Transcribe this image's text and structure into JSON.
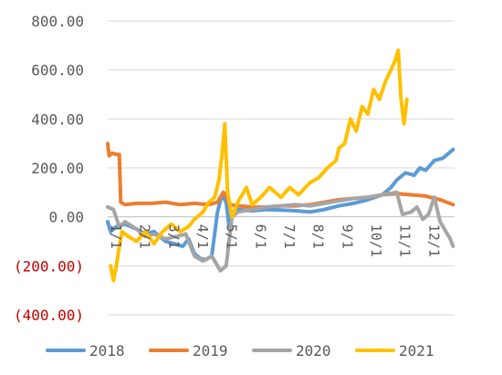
{
  "chart_data": {
    "type": "line",
    "title": "",
    "xlabel": "",
    "ylabel": "",
    "ylim": [
      -400,
      800
    ],
    "y_ticks": [
      "800.00",
      "600.00",
      "400.00",
      "200.00",
      "0.00",
      "(200.00)",
      "(400.00)"
    ],
    "y_tick_values": [
      800,
      600,
      400,
      200,
      0,
      -200,
      -400
    ],
    "negative_tick_color": "#c00000",
    "x_ticks": [
      "1/1",
      "2/1",
      "3/1",
      "4/1",
      "5/1",
      "6/1",
      "7/1",
      "8/1",
      "9/1",
      "10/1",
      "11/1",
      "12/1"
    ],
    "x_tick_months": [
      1,
      2,
      3,
      4,
      5,
      6,
      7,
      8,
      9,
      10,
      11,
      12
    ],
    "xlim": [
      1,
      13
    ],
    "grid": true,
    "legend_position": "bottom",
    "series": [
      {
        "name": "2018",
        "color": "#5b9bd5",
        "points": [
          [
            1,
            -20
          ],
          [
            1.1,
            -60
          ],
          [
            1.3,
            -40
          ],
          [
            1.6,
            -30
          ],
          [
            2,
            -50
          ],
          [
            2.3,
            -70
          ],
          [
            2.6,
            -60
          ],
          [
            3,
            -100
          ],
          [
            3.3,
            -110
          ],
          [
            3.6,
            -120
          ],
          [
            3.8,
            -90
          ],
          [
            4,
            -150
          ],
          [
            4.2,
            -170
          ],
          [
            4.4,
            -175
          ],
          [
            4.6,
            -160
          ],
          [
            4.8,
            20
          ],
          [
            4.95,
            90
          ],
          [
            5.1,
            60
          ],
          [
            5.2,
            -40
          ],
          [
            5.3,
            20
          ],
          [
            5.5,
            30
          ],
          [
            6,
            25
          ],
          [
            6.5,
            30
          ],
          [
            7,
            28
          ],
          [
            7.5,
            25
          ],
          [
            8,
            20
          ],
          [
            8.5,
            30
          ],
          [
            9,
            45
          ],
          [
            9.5,
            55
          ],
          [
            10,
            70
          ],
          [
            10.5,
            90
          ],
          [
            10.8,
            120
          ],
          [
            11,
            150
          ],
          [
            11.3,
            180
          ],
          [
            11.6,
            170
          ],
          [
            11.8,
            200
          ],
          [
            12,
            190
          ],
          [
            12.3,
            230
          ],
          [
            12.6,
            240
          ],
          [
            12.8,
            260
          ],
          [
            12.95,
            275
          ]
        ]
      },
      {
        "name": "2019",
        "color": "#ed7d31",
        "points": [
          [
            1,
            300
          ],
          [
            1.05,
            250
          ],
          [
            1.15,
            260
          ],
          [
            1.3,
            255
          ],
          [
            1.4,
            255
          ],
          [
            1.45,
            60
          ],
          [
            1.6,
            50
          ],
          [
            2,
            55
          ],
          [
            2.5,
            55
          ],
          [
            3,
            60
          ],
          [
            3.5,
            50
          ],
          [
            4,
            55
          ],
          [
            4.5,
            50
          ],
          [
            4.8,
            60
          ],
          [
            5,
            100
          ],
          [
            5.1,
            90
          ],
          [
            5.2,
            50
          ],
          [
            5.5,
            45
          ],
          [
            6,
            40
          ],
          [
            6.5,
            40
          ],
          [
            7,
            45
          ],
          [
            7.5,
            45
          ],
          [
            8,
            50
          ],
          [
            8.5,
            60
          ],
          [
            9,
            70
          ],
          [
            9.5,
            75
          ],
          [
            10,
            80
          ],
          [
            10.5,
            90
          ],
          [
            11,
            95
          ],
          [
            11.5,
            90
          ],
          [
            12,
            85
          ],
          [
            12.5,
            70
          ],
          [
            12.95,
            50
          ]
        ]
      },
      {
        "name": "2020",
        "color": "#a5a5a5",
        "points": [
          [
            1,
            40
          ],
          [
            1.2,
            30
          ],
          [
            1.4,
            -40
          ],
          [
            1.6,
            -20
          ],
          [
            2,
            -50
          ],
          [
            2.3,
            -80
          ],
          [
            2.6,
            -70
          ],
          [
            3,
            -90
          ],
          [
            3.4,
            -80
          ],
          [
            3.7,
            -70
          ],
          [
            4,
            -160
          ],
          [
            4.3,
            -180
          ],
          [
            4.6,
            -160
          ],
          [
            4.9,
            -220
          ],
          [
            5.1,
            -200
          ],
          [
            5.3,
            0
          ],
          [
            5.5,
            20
          ],
          [
            6,
            30
          ],
          [
            6.5,
            40
          ],
          [
            7,
            45
          ],
          [
            7.5,
            50
          ],
          [
            8,
            45
          ],
          [
            8.5,
            55
          ],
          [
            9,
            65
          ],
          [
            9.5,
            75
          ],
          [
            10,
            80
          ],
          [
            10.5,
            90
          ],
          [
            11,
            100
          ],
          [
            11.2,
            10
          ],
          [
            11.5,
            20
          ],
          [
            11.7,
            40
          ],
          [
            11.9,
            -10
          ],
          [
            12.1,
            10
          ],
          [
            12.3,
            80
          ],
          [
            12.5,
            -20
          ],
          [
            12.7,
            -60
          ],
          [
            12.85,
            -90
          ],
          [
            12.95,
            -120
          ]
        ]
      },
      {
        "name": "2021",
        "color": "#ffc000",
        "points": [
          [
            1.1,
            -200
          ],
          [
            1.2,
            -260
          ],
          [
            1.3,
            -200
          ],
          [
            1.4,
            -120
          ],
          [
            1.5,
            -60
          ],
          [
            1.7,
            -80
          ],
          [
            2,
            -100
          ],
          [
            2.3,
            -60
          ],
          [
            2.6,
            -110
          ],
          [
            2.9,
            -60
          ],
          [
            3.2,
            -30
          ],
          [
            3.5,
            -60
          ],
          [
            3.8,
            -40
          ],
          [
            4,
            -10
          ],
          [
            4.3,
            20
          ],
          [
            4.5,
            60
          ],
          [
            4.7,
            80
          ],
          [
            4.85,
            150
          ],
          [
            4.95,
            250
          ],
          [
            5.05,
            380
          ],
          [
            5.15,
            100
          ],
          [
            5.3,
            0
          ],
          [
            5.5,
            60
          ],
          [
            5.8,
            120
          ],
          [
            6,
            50
          ],
          [
            6.3,
            80
          ],
          [
            6.6,
            120
          ],
          [
            7,
            80
          ],
          [
            7.3,
            120
          ],
          [
            7.6,
            90
          ],
          [
            8,
            140
          ],
          [
            8.3,
            160
          ],
          [
            8.6,
            200
          ],
          [
            8.9,
            230
          ],
          [
            9,
            280
          ],
          [
            9.2,
            300
          ],
          [
            9.4,
            400
          ],
          [
            9.6,
            350
          ],
          [
            9.8,
            450
          ],
          [
            10,
            420
          ],
          [
            10.2,
            520
          ],
          [
            10.4,
            480
          ],
          [
            10.6,
            550
          ],
          [
            10.8,
            600
          ],
          [
            10.95,
            640
          ],
          [
            11.05,
            680
          ],
          [
            11.15,
            480
          ],
          [
            11.25,
            380
          ],
          [
            11.35,
            480
          ]
        ]
      }
    ]
  }
}
